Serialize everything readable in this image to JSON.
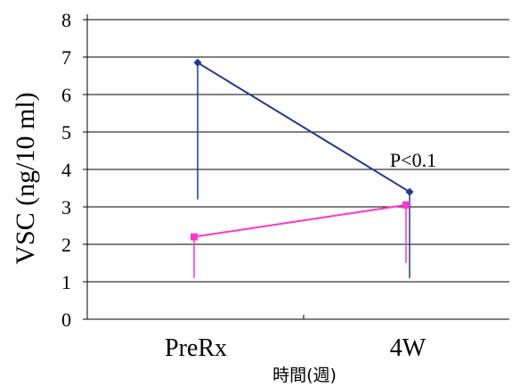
{
  "chart_data": {
    "type": "line",
    "categories": [
      "PreRx",
      "4W"
    ],
    "xlabel": "時間(週)",
    "ylabel": "VSC (ng/10 ml)",
    "ylim": [
      0,
      8
    ],
    "yticks": [
      "0",
      "1",
      "2",
      "3",
      "4",
      "5",
      "6",
      "7",
      "8"
    ],
    "grid": true,
    "series": [
      {
        "color": "#1f3a93",
        "marker": "diamond",
        "values": [
          6.85,
          3.4
        ],
        "error_low": [
          3.2,
          1.1
        ]
      },
      {
        "color": "#ff33cc",
        "marker": "square",
        "values": [
          2.2,
          3.05
        ],
        "error_low": [
          1.1,
          1.5
        ]
      }
    ],
    "annotations": [
      {
        "text": "P<0.1",
        "x": "4W",
        "y": 3.6
      }
    ]
  }
}
